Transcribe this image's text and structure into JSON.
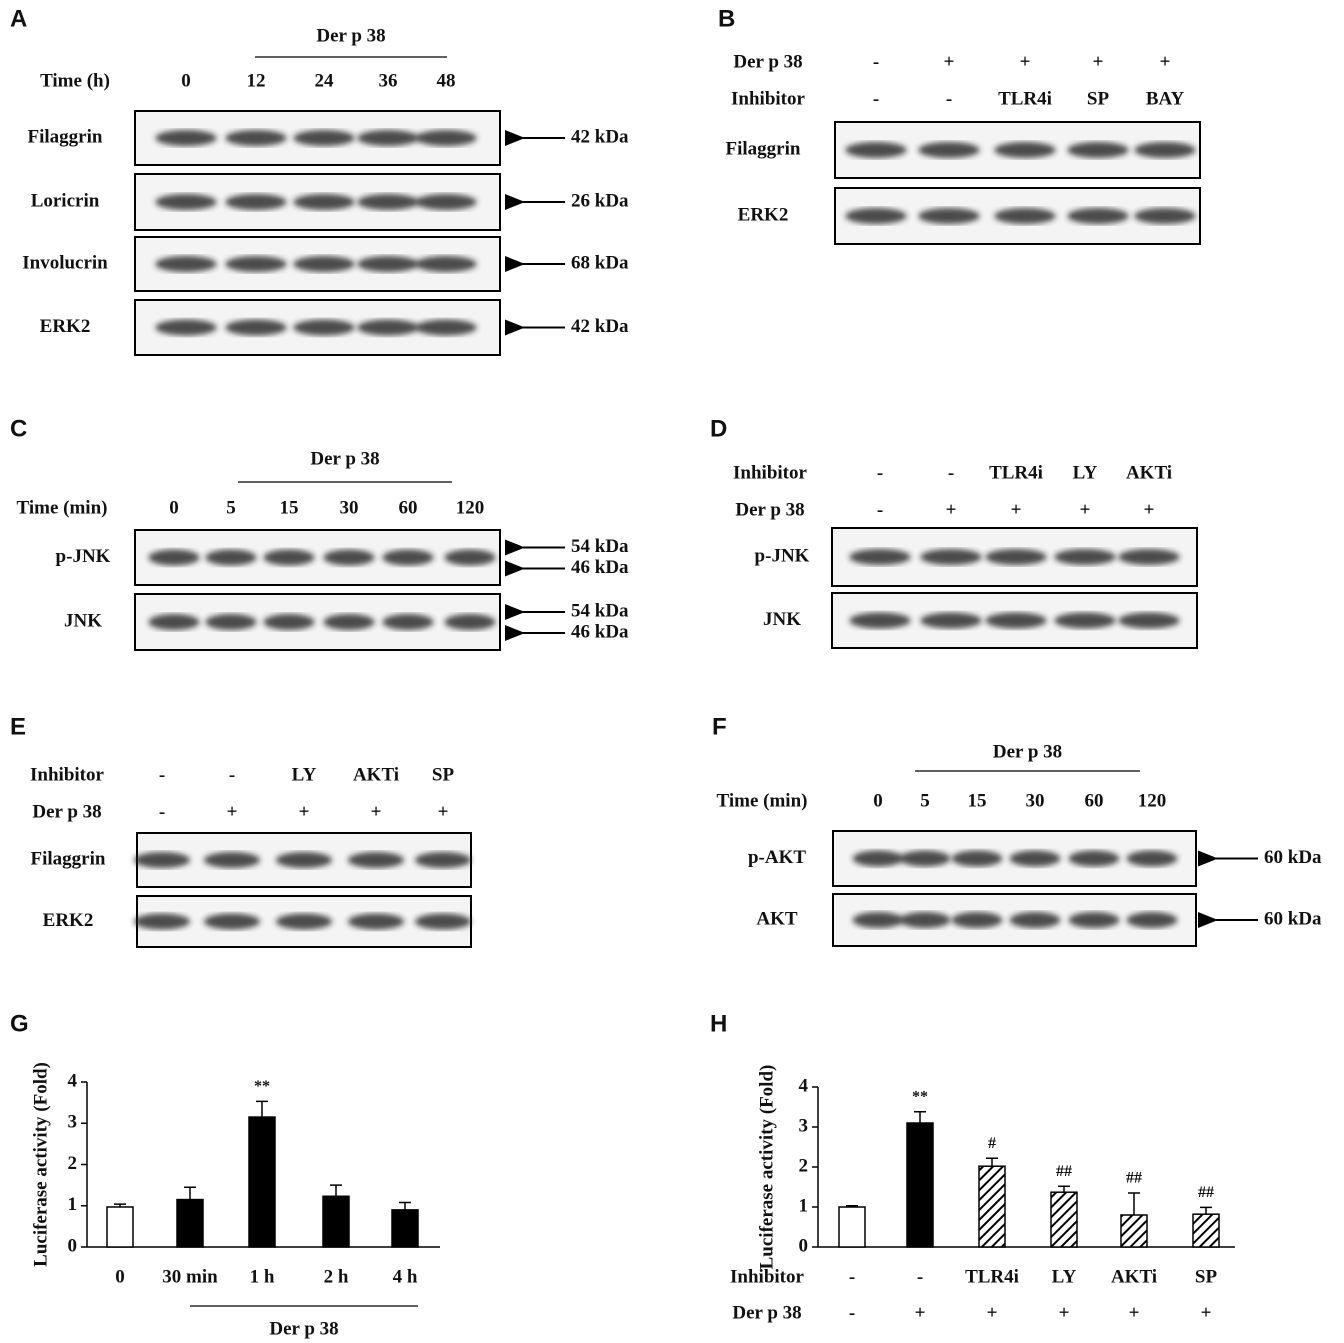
{
  "panels": [
    {
      "label": "A",
      "header": "Der p 38",
      "conditions": [
        {
          "name": "Time (h)",
          "values": [
            "0",
            "12",
            "24",
            "36",
            "48"
          ]
        }
      ],
      "blots": [
        {
          "name": "Filaggrin",
          "sizes": [
            "42 kDa"
          ]
        },
        {
          "name": "Loricrin",
          "sizes": [
            "26 kDa"
          ]
        },
        {
          "name": "Involucrin",
          "sizes": [
            "68 kDa"
          ]
        },
        {
          "name": "ERK2",
          "sizes": [
            "42 kDa"
          ]
        }
      ]
    },
    {
      "label": "B",
      "conditions": [
        {
          "name": "Der p 38",
          "values": [
            "-",
            "+",
            "+",
            "+",
            "+"
          ]
        },
        {
          "name": "Inhibitor",
          "values": [
            "-",
            "-",
            "TLR4i",
            "SP",
            "BAY"
          ]
        }
      ],
      "blots": [
        {
          "name": "Filaggrin"
        },
        {
          "name": "ERK2"
        }
      ]
    },
    {
      "label": "C",
      "header": "Der p 38",
      "conditions": [
        {
          "name": "Time (min)",
          "values": [
            "0",
            "5",
            "15",
            "30",
            "60",
            "120"
          ]
        }
      ],
      "blots": [
        {
          "name": "p-JNK",
          "sizes": [
            "54 kDa",
            "46 kDa"
          ]
        },
        {
          "name": "JNK",
          "sizes": [
            "54 kDa",
            "46 kDa"
          ]
        }
      ]
    },
    {
      "label": "D",
      "conditions": [
        {
          "name": "Inhibitor",
          "values": [
            "-",
            "-",
            "TLR4i",
            "LY",
            "AKTi"
          ]
        },
        {
          "name": "Der p 38",
          "values": [
            "-",
            "+",
            "+",
            "+",
            "+"
          ]
        }
      ],
      "blots": [
        {
          "name": "p-JNK"
        },
        {
          "name": "JNK"
        }
      ]
    },
    {
      "label": "E",
      "conditions": [
        {
          "name": "Inhibitor",
          "values": [
            "-",
            "-",
            "LY",
            "AKTi",
            "SP"
          ]
        },
        {
          "name": "Der p 38",
          "values": [
            "-",
            "+",
            "+",
            "+",
            "+"
          ]
        }
      ],
      "blots": [
        {
          "name": "Filaggrin"
        },
        {
          "name": "ERK2"
        }
      ]
    },
    {
      "label": "F",
      "header": "Der p 38",
      "conditions": [
        {
          "name": "Time (min)",
          "values": [
            "0",
            "5",
            "15",
            "30",
            "60",
            "120"
          ]
        }
      ],
      "blots": [
        {
          "name": "p-AKT",
          "sizes": [
            "60 kDa"
          ]
        },
        {
          "name": "AKT",
          "sizes": [
            "60 kDa"
          ]
        }
      ]
    }
  ],
  "chart_data": [
    {
      "type": "bar",
      "label": "G",
      "y_label": "Luciferase activity (Fold)",
      "categories": [
        "0",
        "30 min",
        "1 h",
        "2 h",
        "4 h"
      ],
      "values": [
        0.97,
        1.15,
        3.15,
        1.23,
        0.9
      ],
      "errors": [
        0.07,
        0.3,
        0.38,
        0.27,
        0.18
      ],
      "significance": [
        null,
        null,
        "**",
        null,
        null
      ],
      "bar_styles": [
        "open",
        "solid",
        "solid",
        "solid",
        "solid"
      ],
      "group_label": "Der p 38",
      "ylim": [
        0,
        4
      ],
      "yticks": [
        0,
        1,
        2,
        3,
        4
      ]
    },
    {
      "type": "bar",
      "label": "H",
      "y_label": "Luciferase activity (Fold)",
      "conditions": [
        {
          "name": "Inhibitor",
          "values": [
            "-",
            "-",
            "TLR4i",
            "LY",
            "AKTi",
            "SP"
          ]
        },
        {
          "name": "Der p 38",
          "values": [
            "-",
            "+",
            "+",
            "+",
            "+",
            "+"
          ]
        }
      ],
      "values": [
        1.0,
        3.1,
        2.02,
        1.37,
        0.8,
        0.82
      ],
      "errors": [
        0.03,
        0.28,
        0.2,
        0.15,
        0.55,
        0.17
      ],
      "significance": [
        null,
        "**",
        "#",
        "##",
        "##",
        "##"
      ],
      "bar_styles": [
        "open",
        "solid",
        "hatched",
        "hatched",
        "hatched",
        "hatched"
      ],
      "ylim": [
        0,
        4
      ],
      "yticks": [
        0,
        1,
        2,
        3,
        4
      ]
    }
  ]
}
